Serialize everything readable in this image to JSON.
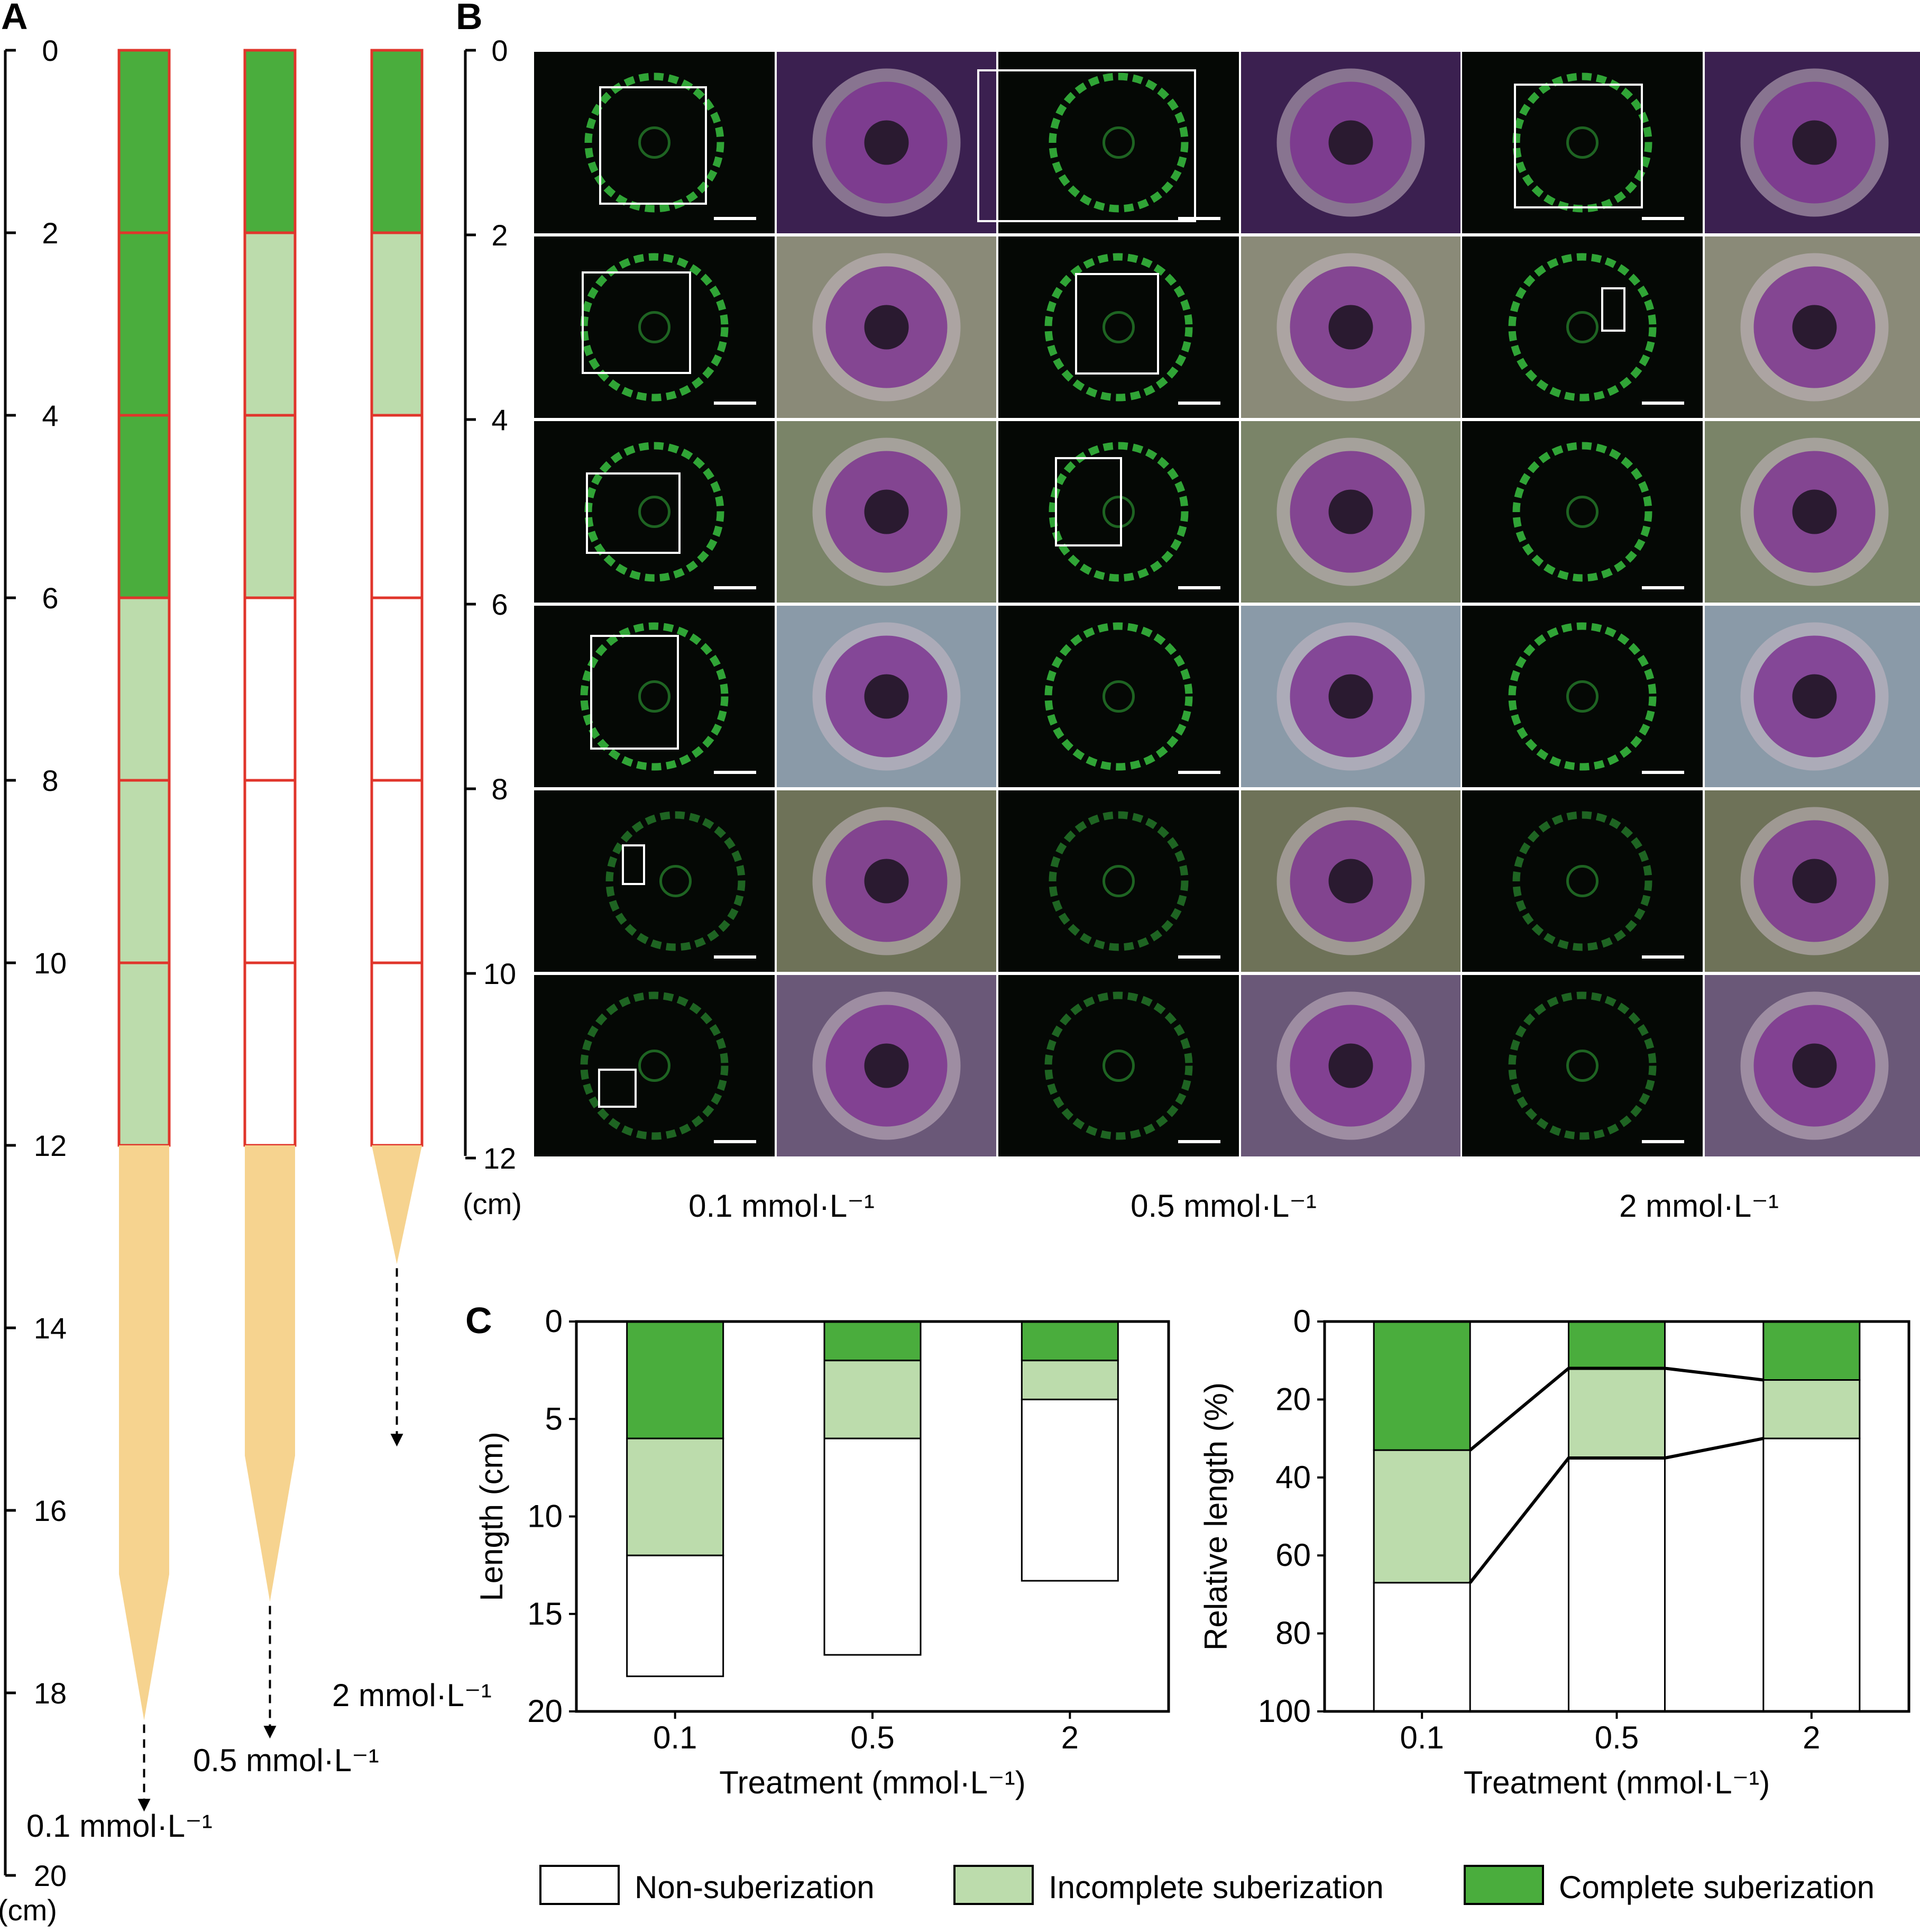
{
  "panels": {
    "A": "A",
    "B": "B",
    "C": "C"
  },
  "colors": {
    "complete": "#4aad3d",
    "incomplete": "#bcdcac",
    "non": "#ffffff",
    "segment_border": "#e0352b",
    "tip": "#f6d38f",
    "micro_bg": "#050805",
    "green_fluor": "#38c040"
  },
  "panel_a": {
    "axis_ticks": [
      "0",
      "2",
      "4",
      "6",
      "8",
      "10",
      "12",
      "14",
      "16",
      "18",
      "20"
    ],
    "axis_unit": "(cm)",
    "roots": [
      {
        "label": "0.1  mmol·L⁻¹",
        "segments": [
          "complete",
          "complete",
          "complete",
          "incomplete",
          "incomplete",
          "incomplete"
        ],
        "tip_end_cm": 18.3,
        "arrow_end_cm": 19.3
      },
      {
        "label": "0.5 mmol·L⁻¹",
        "segments": [
          "complete",
          "incomplete",
          "incomplete",
          "non",
          "non",
          "non"
        ],
        "tip_end_cm": 17.0,
        "arrow_end_cm": 18.5
      },
      {
        "label": "2  mmol·L⁻¹",
        "segments": [
          "complete",
          "incomplete",
          "non",
          "non",
          "non",
          "non"
        ],
        "tip_end_cm": 13.3,
        "arrow_end_cm": 15.3
      }
    ]
  },
  "panel_b": {
    "axis_ticks": [
      "0",
      "2",
      "4",
      "6",
      "8",
      "10",
      "12"
    ],
    "axis_unit": "(cm)",
    "columns": [
      "0.1 mmol·L⁻¹",
      "0.5 mmol·L⁻¹",
      "2 mmol·L⁻¹"
    ],
    "photo_tints": [
      "#3b2050",
      "#8a8a78",
      "#7a8468",
      "#8a9aa8",
      "#6e7258",
      "#6a5878"
    ],
    "stain_color": "#7a2e8e"
  },
  "chart_data": [
    {
      "type": "bar",
      "stacked": true,
      "title": "",
      "categories": [
        "0.1",
        "0.5",
        "2"
      ],
      "series": [
        {
          "name": "Complete suberization",
          "values": [
            6,
            2,
            2
          ]
        },
        {
          "name": "Incomplete suberization",
          "values": [
            6,
            4,
            2
          ]
        },
        {
          "name": "Non-suberization",
          "values": [
            6.2,
            11.1,
            9.3
          ]
        }
      ],
      "xlabel": "Treatment (mmol·L⁻¹)",
      "ylabel": "Length (cm)",
      "ylim": [
        0,
        20
      ],
      "y_inverted": true,
      "yticks": [
        "0",
        "5",
        "10",
        "15",
        "20"
      ]
    },
    {
      "type": "bar",
      "stacked": true,
      "title": "",
      "categories": [
        "0.1",
        "0.5",
        "2"
      ],
      "series": [
        {
          "name": "Complete suberization",
          "values": [
            33,
            12,
            15
          ]
        },
        {
          "name": "Incomplete suberization",
          "values": [
            34,
            23,
            15
          ]
        },
        {
          "name": "Non-suberization",
          "values": [
            33,
            65,
            70
          ]
        }
      ],
      "xlabel": "Treatment (mmol·L⁻¹)",
      "ylabel": "Relative length (%)",
      "ylim": [
        0,
        100
      ],
      "y_inverted": true,
      "yticks": [
        "0",
        "20",
        "40",
        "60",
        "80",
        "100"
      ],
      "connector_lines": true
    }
  ],
  "legend": [
    {
      "key": "non",
      "label": "Non-suberization"
    },
    {
      "key": "incomplete",
      "label": "Incomplete suberization"
    },
    {
      "key": "complete",
      "label": "Complete suberization"
    }
  ]
}
